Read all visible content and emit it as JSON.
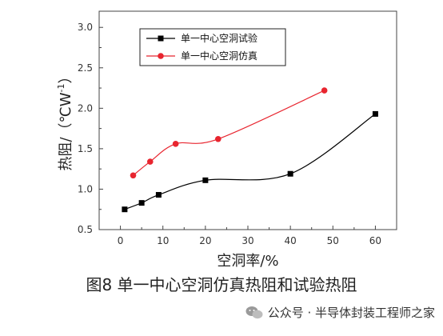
{
  "chart_data": {
    "type": "line",
    "xlabel": "空洞率/%",
    "ylabel": "热阻/（℃W",
    "ylabel_sup": "-1",
    "ylabel_close": "）",
    "xlim": [
      -5,
      65
    ],
    "ylim": [
      0.5,
      3.2
    ],
    "xticks": [
      0,
      10,
      20,
      30,
      40,
      50,
      60
    ],
    "yticks": [
      0.5,
      1.0,
      1.5,
      2.0,
      2.5,
      3.0
    ],
    "xtick_labels": [
      "0",
      "10",
      "20",
      "30",
      "40",
      "50",
      "60"
    ],
    "ytick_labels": [
      "0.5",
      "1.0",
      "1.5",
      "2.0",
      "2.5",
      "3.0"
    ],
    "legend_position": "top-left",
    "series": [
      {
        "name": "单一中心空洞试验",
        "color": "#000000",
        "marker": "square",
        "x": [
          1,
          5,
          9,
          20,
          40,
          60
        ],
        "y": [
          0.75,
          0.83,
          0.93,
          1.11,
          1.19,
          1.93
        ]
      },
      {
        "name": "单一中心空洞仿真",
        "color": "#e8252f",
        "marker": "circle",
        "x": [
          3,
          7,
          13,
          23,
          48
        ],
        "y": [
          1.17,
          1.34,
          1.56,
          1.62,
          2.22
        ]
      }
    ]
  },
  "caption": "图8  单一中心空洞仿真热阻和试验热阻",
  "watermark": "公众号 · 半导体封装工程师之家"
}
